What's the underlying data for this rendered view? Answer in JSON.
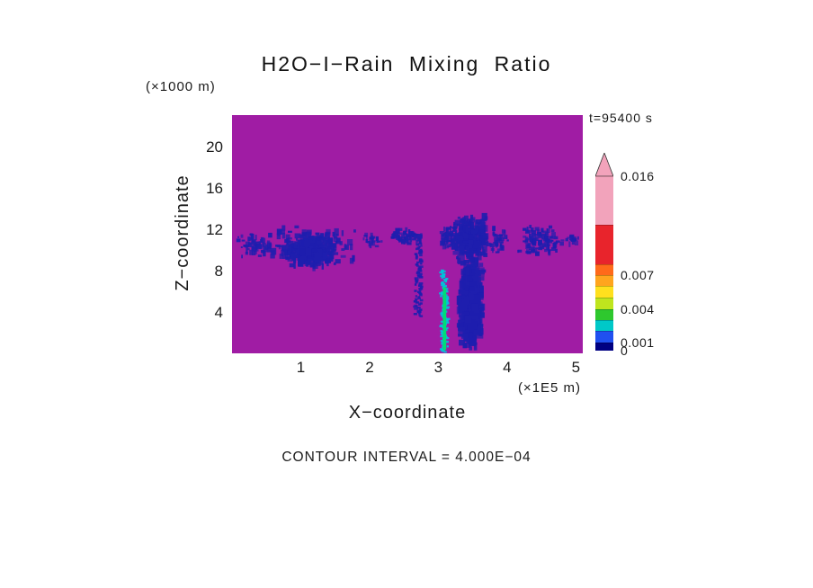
{
  "chart_data": {
    "type": "heatmap",
    "title": "H2O−I−Rain Mixing Ratio",
    "time_label": "t=95400 s",
    "xlabel": "X−coordinate",
    "ylabel": "Z−coordinate",
    "x_unit_label": "(×1E5 m)",
    "y_unit_label": "(×1000 m)",
    "caption": "CONTOUR INTERVAL = 4.000E−04",
    "x_domain": [
      0,
      5.1
    ],
    "z_domain": [
      0,
      23
    ],
    "x_ticks": [
      1,
      2,
      3,
      4,
      5
    ],
    "z_ticks": [
      20,
      16,
      12,
      8,
      4
    ],
    "field_background_color": "#A01CA4",
    "speckle_color": "#1E1EAE",
    "updraft_color": "#00C4DC",
    "core_color": "#00DC78",
    "features": [
      {
        "type": "speckle",
        "x0": 0.05,
        "x1": 0.58,
        "z0": 9.3,
        "z1": 11.8,
        "count": 55,
        "size": 3,
        "color": "#1E1EAE"
      },
      {
        "type": "speckle",
        "x0": 0.5,
        "x1": 1.82,
        "z0": 7.9,
        "z1": 12.3,
        "count": 170,
        "size": 3.5,
        "color": "#1E1EAE"
      },
      {
        "type": "speckle",
        "x0": 0.72,
        "x1": 1.55,
        "z0": 8.4,
        "z1": 11.6,
        "count": 230,
        "size": 4,
        "color": "#1E1EAE"
      },
      {
        "type": "speckle",
        "x0": 1.9,
        "x1": 2.2,
        "z0": 10.2,
        "z1": 11.6,
        "count": 22,
        "size": 3,
        "color": "#1E1EAE"
      },
      {
        "type": "speckle",
        "x0": 2.25,
        "x1": 2.8,
        "z0": 10.4,
        "z1": 12.3,
        "count": 55,
        "size": 3,
        "color": "#1E1EAE"
      },
      {
        "type": "streak",
        "cx": 2.71,
        "w": 0.09,
        "z0": 3.6,
        "z1": 10.6,
        "count": 70,
        "size": 3,
        "color": "#1E1EAE"
      },
      {
        "type": "speckle",
        "x0": 3.0,
        "x1": 3.26,
        "z0": 9.9,
        "z1": 12.6,
        "count": 45,
        "size": 3,
        "color": "#1E1EAE"
      },
      {
        "type": "speckle",
        "x0": 3.2,
        "x1": 3.75,
        "z0": 8.8,
        "z1": 13.4,
        "count": 260,
        "size": 4,
        "color": "#1E1EAE"
      },
      {
        "type": "speckle",
        "x0": 3.72,
        "x1": 4.02,
        "z0": 9.5,
        "z1": 12.1,
        "count": 40,
        "size": 3,
        "color": "#1E1EAE"
      },
      {
        "type": "speckle",
        "x0": 3.3,
        "x1": 3.66,
        "z0": 0.0,
        "z1": 9.6,
        "count": 430,
        "size": 5,
        "color": "#1E1EAE"
      },
      {
        "type": "streak",
        "cx": 3.09,
        "w": 0.1,
        "z0": 0.15,
        "z1": 8.0,
        "count": 90,
        "size": 3,
        "color": "#00C4DC"
      },
      {
        "type": "core",
        "cx": 3.09,
        "w": 0.05,
        "z0": 0.3,
        "z1": 6.4,
        "color": "#00DC78"
      },
      {
        "type": "speckle",
        "x0": 4.1,
        "x1": 4.85,
        "z0": 9.4,
        "z1": 12.3,
        "count": 95,
        "size": 3,
        "color": "#1E1EAE"
      },
      {
        "type": "speckle",
        "x0": 4.85,
        "x1": 5.08,
        "z0": 10.4,
        "z1": 11.5,
        "count": 14,
        "size": 3,
        "color": "#1E1EAE"
      }
    ],
    "colorbar": {
      "top_label": "0.016",
      "triangle_color": "#F2A3BB",
      "segments": [
        {
          "color": "#F2A3BB",
          "h": 54,
          "label": null
        },
        {
          "color": "#E8242C",
          "h": 44,
          "label": null
        },
        {
          "color": "#FF6A1A",
          "h": 12,
          "label": "0.007"
        },
        {
          "color": "#FFA51E",
          "h": 12,
          "label": null
        },
        {
          "color": "#FFE01E",
          "h": 13,
          "label": null
        },
        {
          "color": "#BFE51E",
          "h": 13,
          "label": "0.004"
        },
        {
          "color": "#2EC82E",
          "h": 12,
          "label": null
        },
        {
          "color": "#00C8C8",
          "h": 12,
          "label": null
        },
        {
          "color": "#2050F0",
          "h": 13,
          "label": "0.001"
        },
        {
          "color": "#000082",
          "h": 9,
          "label": "0"
        }
      ]
    }
  }
}
